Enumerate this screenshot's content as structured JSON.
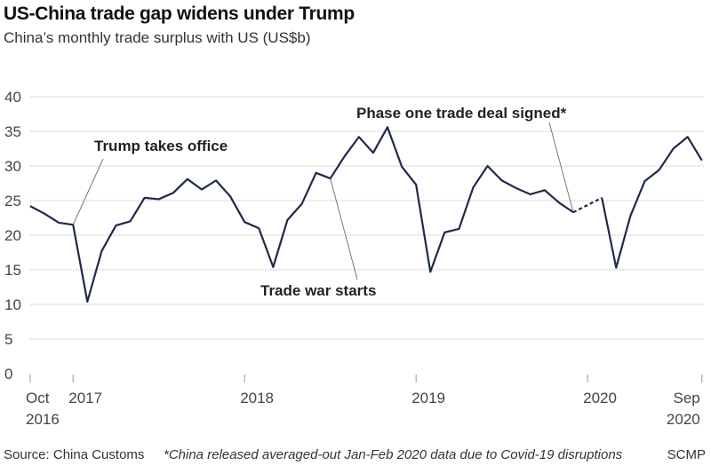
{
  "chart_data": {
    "type": "line",
    "title": "US-China trade gap widens under Trump",
    "subtitle": "China’s monthly trade surplus with US (US$b)",
    "xlabel": "",
    "ylabel": "",
    "ylim": [
      0,
      40
    ],
    "yticks": [
      "0",
      "5",
      "10",
      "15",
      "20",
      "25",
      "30",
      "35",
      "40"
    ],
    "ytick_values": [
      0,
      5,
      10,
      15,
      20,
      25,
      30,
      35,
      40
    ],
    "grid": true,
    "x_start": "Oct 2016",
    "x_end": "Sep 2020",
    "xticks": [
      {
        "month_index": 0,
        "line1": "Oct",
        "line2": "2016"
      },
      {
        "month_index": 3,
        "line1": "2017",
        "line2": ""
      },
      {
        "month_index": 15,
        "line1": "2018",
        "line2": ""
      },
      {
        "month_index": 27,
        "line1": "2019",
        "line2": ""
      },
      {
        "month_index": 39,
        "line1": "2020",
        "line2": ""
      },
      {
        "month_index": 47,
        "line1": "Sep",
        "line2": "2020"
      }
    ],
    "series": [
      {
        "name": "China trade surplus with US",
        "color": "#1f2a4a",
        "points": [
          {
            "month": "2016-10",
            "value": 24.2
          },
          {
            "month": "2016-11",
            "value": 23.1
          },
          {
            "month": "2016-12",
            "value": 21.8
          },
          {
            "month": "2017-01",
            "value": 21.5
          },
          {
            "month": "2017-02",
            "value": 10.4
          },
          {
            "month": "2017-03",
            "value": 17.7
          },
          {
            "month": "2017-04",
            "value": 21.4
          },
          {
            "month": "2017-05",
            "value": 22.0
          },
          {
            "month": "2017-06",
            "value": 25.4
          },
          {
            "month": "2017-07",
            "value": 25.2
          },
          {
            "month": "2017-08",
            "value": 26.1
          },
          {
            "month": "2017-09",
            "value": 28.1
          },
          {
            "month": "2017-10",
            "value": 26.6
          },
          {
            "month": "2017-11",
            "value": 27.9
          },
          {
            "month": "2017-12",
            "value": 25.6
          },
          {
            "month": "2018-01",
            "value": 21.9
          },
          {
            "month": "2018-02",
            "value": 21.0
          },
          {
            "month": "2018-03",
            "value": 15.4
          },
          {
            "month": "2018-04",
            "value": 22.2
          },
          {
            "month": "2018-05",
            "value": 24.5
          },
          {
            "month": "2018-06",
            "value": 29.0
          },
          {
            "month": "2018-07",
            "value": 28.2
          },
          {
            "month": "2018-08",
            "value": 31.4
          },
          {
            "month": "2018-09",
            "value": 34.2
          },
          {
            "month": "2018-10",
            "value": 31.9
          },
          {
            "month": "2018-11",
            "value": 35.6
          },
          {
            "month": "2018-12",
            "value": 29.9
          },
          {
            "month": "2019-01",
            "value": 27.3
          },
          {
            "month": "2019-02",
            "value": 14.7
          },
          {
            "month": "2019-03",
            "value": 20.4
          },
          {
            "month": "2019-04",
            "value": 20.9
          },
          {
            "month": "2019-05",
            "value": 26.9
          },
          {
            "month": "2019-06",
            "value": 30.0
          },
          {
            "month": "2019-07",
            "value": 27.9
          },
          {
            "month": "2019-08",
            "value": 26.8
          },
          {
            "month": "2019-09",
            "value": 25.9
          },
          {
            "month": "2019-10",
            "value": 26.5
          },
          {
            "month": "2019-11",
            "value": 24.7
          },
          {
            "month": "2019-12",
            "value": 23.3
          },
          {
            "month": "2020-02",
            "value": 25.4,
            "note": "averaged Jan-Feb 2020",
            "dashed_from_previous": true
          },
          {
            "month": "2020-03",
            "value": 15.3
          },
          {
            "month": "2020-04",
            "value": 22.8
          },
          {
            "month": "2020-05",
            "value": 27.8
          },
          {
            "month": "2020-06",
            "value": 29.4
          },
          {
            "month": "2020-07",
            "value": 32.5
          },
          {
            "month": "2020-08",
            "value": 34.2
          },
          {
            "month": "2020-09",
            "value": 30.8
          }
        ]
      }
    ],
    "annotations": [
      {
        "text": "Trump takes office",
        "target_month": "2017-01"
      },
      {
        "text": "Trade war starts",
        "target_month": "2018-07"
      },
      {
        "text": "Phase one trade deal signed*",
        "target_month": "2019-12"
      }
    ],
    "legend": "none"
  },
  "footer": {
    "source": "Source: China Customs",
    "note": "*China released averaged-out Jan-Feb 2020 data due to Covid-19 disruptions",
    "brand": "SCMP"
  }
}
